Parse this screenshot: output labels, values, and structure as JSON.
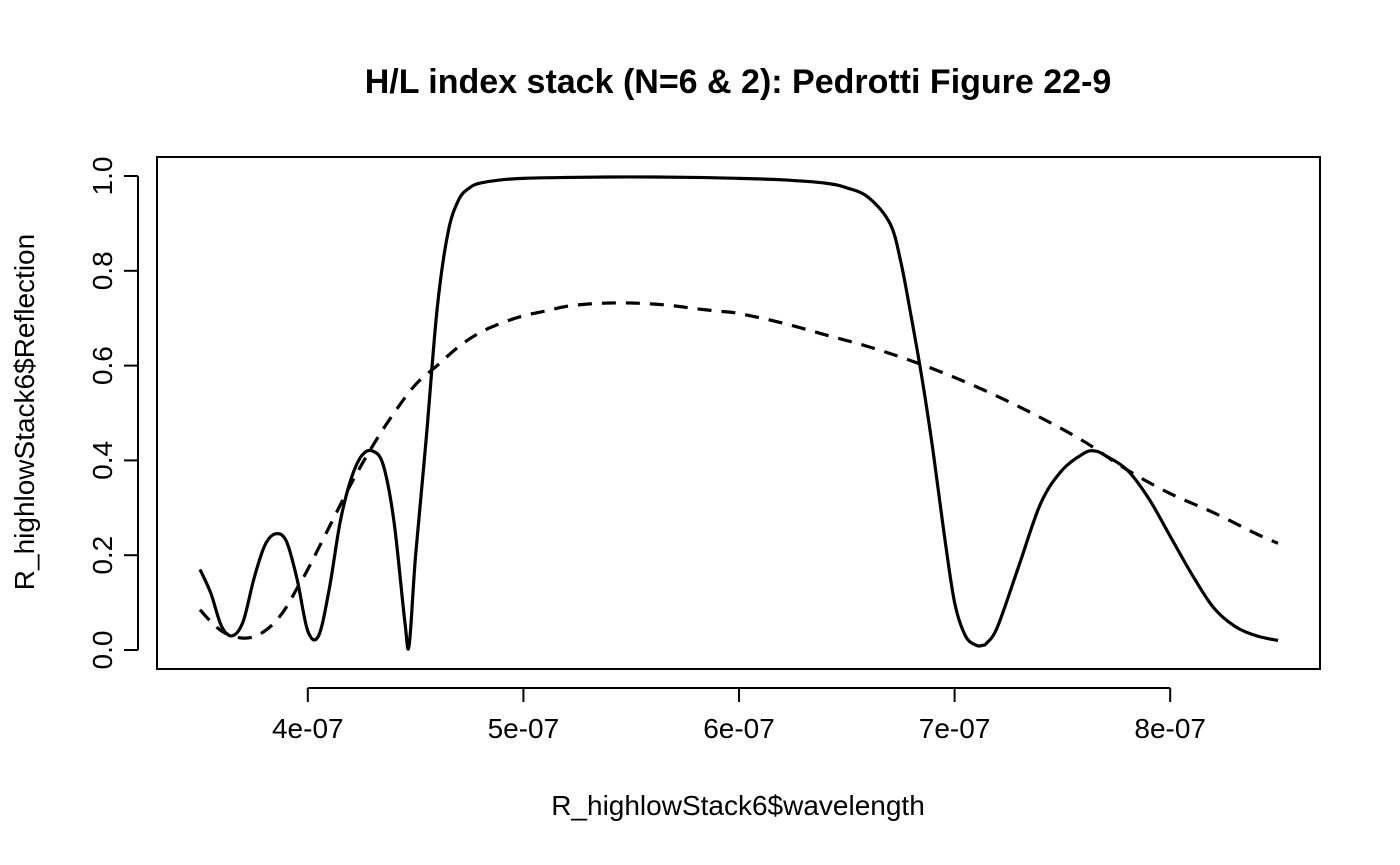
{
  "chart_data": {
    "type": "line",
    "title": "H/L index stack (N=6 & 2): Pedrotti Figure 22-9",
    "xlabel": "R_highlowStack6$wavelength",
    "ylabel": "R_highlowStack6$Reflection",
    "xlim": [
      3.5e-07,
      8.5e-07
    ],
    "ylim": [
      0.0,
      1.0
    ],
    "x_ticks": [
      4e-07,
      5e-07,
      6e-07,
      7e-07,
      8e-07
    ],
    "x_tick_labels": [
      "4e-07",
      "5e-07",
      "6e-07",
      "7e-07",
      "8e-07"
    ],
    "y_ticks": [
      0.0,
      0.2,
      0.4,
      0.6,
      0.8,
      1.0
    ],
    "y_tick_labels": [
      "0.0",
      "0.2",
      "0.4",
      "0.6",
      "0.8",
      "1.0"
    ],
    "grid": false,
    "legend": "none",
    "series": [
      {
        "style": "solid",
        "x": [
          3.5e-07,
          3.55e-07,
          3.6e-07,
          3.65e-07,
          3.7e-07,
          3.75e-07,
          3.8e-07,
          3.85e-07,
          3.9e-07,
          3.95e-07,
          4e-07,
          4.05e-07,
          4.1e-07,
          4.15e-07,
          4.2e-07,
          4.25e-07,
          4.3e-07,
          4.35e-07,
          4.4e-07,
          4.45e-07,
          4.47e-07,
          4.5e-07,
          4.55e-07,
          4.6e-07,
          4.65e-07,
          4.7e-07,
          4.75e-07,
          4.8e-07,
          4.9e-07,
          5e-07,
          5.2e-07,
          5.5e-07,
          5.8e-07,
          6e-07,
          6.2e-07,
          6.4e-07,
          6.5e-07,
          6.6e-07,
          6.7e-07,
          6.75e-07,
          6.8e-07,
          6.85e-07,
          6.9e-07,
          6.95e-07,
          7e-07,
          7.05e-07,
          7.1e-07,
          7.13e-07,
          7.15e-07,
          7.2e-07,
          7.3e-07,
          7.4e-07,
          7.5e-07,
          7.6e-07,
          7.65e-07,
          7.7e-07,
          7.8e-07,
          7.9e-07,
          8e-07,
          8.1e-07,
          8.2e-07,
          8.3e-07,
          8.4e-07,
          8.5e-07
        ],
        "y": [
          0.17,
          0.12,
          0.05,
          0.03,
          0.06,
          0.15,
          0.22,
          0.245,
          0.23,
          0.15,
          0.04,
          0.03,
          0.13,
          0.27,
          0.36,
          0.41,
          0.42,
          0.39,
          0.27,
          0.06,
          0.01,
          0.2,
          0.45,
          0.72,
          0.88,
          0.95,
          0.975,
          0.985,
          0.992,
          0.995,
          0.997,
          0.998,
          0.997,
          0.995,
          0.992,
          0.985,
          0.975,
          0.955,
          0.9,
          0.82,
          0.7,
          0.57,
          0.42,
          0.25,
          0.1,
          0.03,
          0.01,
          0.01,
          0.015,
          0.05,
          0.18,
          0.31,
          0.38,
          0.415,
          0.42,
          0.41,
          0.38,
          0.32,
          0.24,
          0.16,
          0.09,
          0.05,
          0.03,
          0.02
        ]
      },
      {
        "style": "dashed",
        "x": [
          3.5e-07,
          3.55e-07,
          3.6e-07,
          3.65e-07,
          3.7e-07,
          3.75e-07,
          3.8e-07,
          3.85e-07,
          3.9e-07,
          3.95e-07,
          4e-07,
          4.1e-07,
          4.2e-07,
          4.3e-07,
          4.4e-07,
          4.5e-07,
          4.6e-07,
          4.7e-07,
          4.8e-07,
          4.9e-07,
          5e-07,
          5.1e-07,
          5.2e-07,
          5.3e-07,
          5.4e-07,
          5.5e-07,
          5.6e-07,
          5.7e-07,
          5.8e-07,
          5.9e-07,
          6e-07,
          6.2e-07,
          6.4e-07,
          6.6e-07,
          6.8e-07,
          7e-07,
          7.2e-07,
          7.4e-07,
          7.6e-07,
          7.8e-07,
          8e-07,
          8.2e-07,
          8.4e-07,
          8.5e-07
        ],
        "y": [
          0.085,
          0.06,
          0.04,
          0.03,
          0.025,
          0.028,
          0.04,
          0.06,
          0.09,
          0.13,
          0.17,
          0.26,
          0.35,
          0.43,
          0.5,
          0.56,
          0.6,
          0.64,
          0.67,
          0.69,
          0.705,
          0.715,
          0.725,
          0.73,
          0.732,
          0.732,
          0.73,
          0.726,
          0.72,
          0.715,
          0.71,
          0.69,
          0.665,
          0.64,
          0.61,
          0.575,
          0.535,
          0.49,
          0.44,
          0.38,
          0.33,
          0.29,
          0.245,
          0.225
        ]
      }
    ]
  }
}
